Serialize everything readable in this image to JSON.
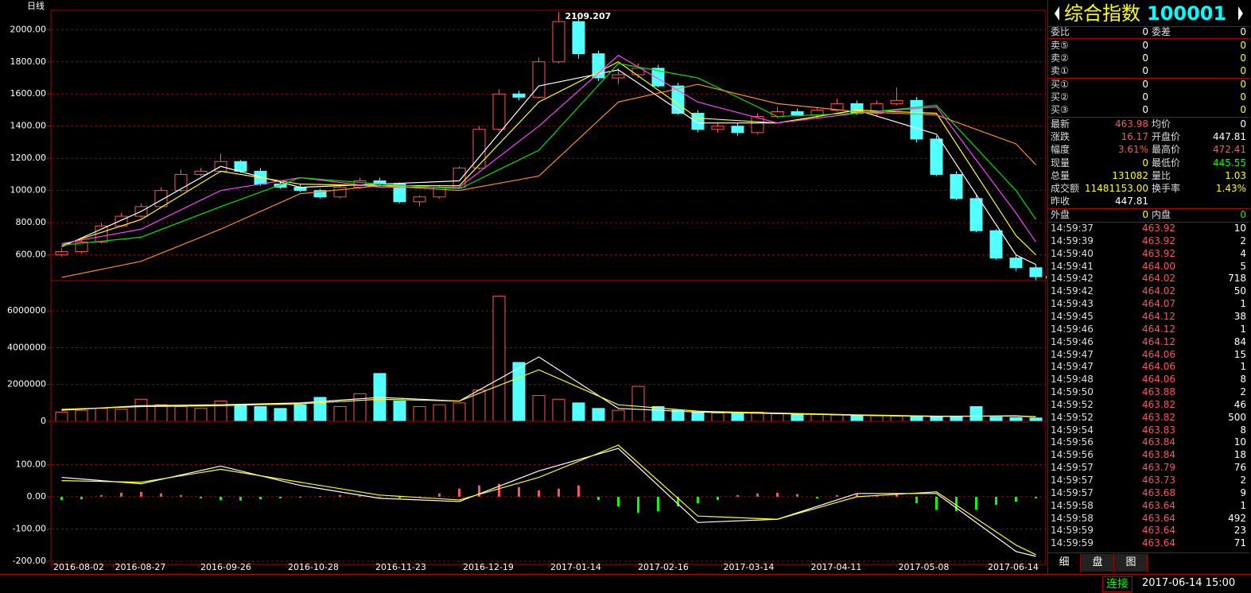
{
  "chart_data": [
    {
      "type": "candlestick",
      "title": "日线",
      "up_color": "#ff5454",
      "down_color": "#54ffff",
      "grid": true,
      "ylim": [
        440,
        2120
      ],
      "yticks": [
        {
          "value": 600,
          "label": "600.00"
        },
        {
          "value": 800,
          "label": "800.00"
        },
        {
          "value": 1000,
          "label": "1000.00"
        },
        {
          "value": 1200,
          "label": "1200.00"
        },
        {
          "value": 1400,
          "label": "1400.00"
        },
        {
          "value": 1600,
          "label": "1600.00"
        },
        {
          "value": 1800,
          "label": "1800.00"
        },
        {
          "value": 2000,
          "label": "2000.00"
        }
      ],
      "xlim": [
        -0.5,
        49.5
      ],
      "candles": {
        "open": [
          600,
          620,
          680,
          780,
          840,
          900,
          1000,
          1100,
          1120,
          1180,
          1120,
          1040,
          1020,
          1000,
          960,
          1020,
          1060,
          1040,
          930,
          960,
          1020,
          1140,
          1380,
          1600,
          1580,
          1800,
          2050,
          1850,
          1700,
          1720,
          1760,
          1650,
          1480,
          1380,
          1400,
          1360,
          1460,
          1490,
          1470,
          1500,
          1540,
          1480,
          1540,
          1560,
          1320,
          1100,
          950,
          750,
          580,
          520
        ],
        "high": [
          640,
          700,
          800,
          860,
          920,
          1020,
          1130,
          1140,
          1230,
          1190,
          1140,
          1060,
          1040,
          1010,
          1030,
          1080,
          1080,
          1050,
          970,
          1030,
          1150,
          1400,
          1630,
          1620,
          1830,
          2109.207,
          2070,
          1870,
          1760,
          1790,
          1780,
          1670,
          1500,
          1420,
          1420,
          1480,
          1520,
          1510,
          1520,
          1570,
          1560,
          1560,
          1640,
          1580,
          1340,
          1120,
          970,
          760,
          600,
          540
        ],
        "low": [
          590,
          610,
          670,
          770,
          830,
          890,
          990,
          1090,
          1110,
          1110,
          1030,
          1010,
          990,
          950,
          950,
          1010,
          1030,
          920,
          900,
          950,
          1010,
          1130,
          1370,
          1560,
          1570,
          1790,
          1820,
          1680,
          1660,
          1700,
          1640,
          1470,
          1360,
          1360,
          1340,
          1350,
          1450,
          1460,
          1450,
          1490,
          1470,
          1460,
          1530,
          1300,
          1090,
          940,
          740,
          570,
          500,
          442.1505
        ],
        "close": [
          620,
          680,
          780,
          840,
          900,
          1000,
          1100,
          1120,
          1180,
          1120,
          1040,
          1020,
          1000,
          960,
          1020,
          1060,
          1040,
          930,
          960,
          1020,
          1140,
          1380,
          1600,
          1580,
          1800,
          2050,
          1850,
          1700,
          1720,
          1760,
          1650,
          1480,
          1380,
          1400,
          1360,
          1460,
          1490,
          1470,
          1500,
          1540,
          1480,
          1540,
          1560,
          1320,
          1100,
          950,
          750,
          580,
          520,
          464
        ]
      },
      "series": [
        {
          "color": "#ffffff",
          "x": [
            0,
            4,
            8,
            12,
            16,
            20,
            24,
            28,
            32,
            36,
            40,
            44,
            48,
            49
          ],
          "values": [
            650,
            870,
            1150,
            1020,
            1040,
            1060,
            1650,
            1750,
            1420,
            1420,
            1500,
            1350,
            600,
            540
          ]
        },
        {
          "color": "#ffff00",
          "x": [
            0,
            4,
            8,
            12,
            16,
            20,
            24,
            28,
            32,
            36,
            40,
            44,
            48,
            49
          ],
          "values": [
            660,
            820,
            1120,
            1040,
            1030,
            1030,
            1550,
            1800,
            1450,
            1420,
            1500,
            1480,
            720,
            600
          ]
        },
        {
          "color": "#ff40ff",
          "x": [
            0,
            4,
            8,
            12,
            16,
            20,
            24,
            28,
            32,
            36,
            40,
            44,
            48,
            49
          ],
          "values": [
            670,
            760,
            1000,
            1080,
            1020,
            1020,
            1400,
            1840,
            1550,
            1420,
            1480,
            1520,
            860,
            680
          ]
        },
        {
          "color": "#00e000",
          "x": [
            0,
            4,
            8,
            12,
            16,
            20,
            24,
            28,
            32,
            36,
            40,
            44,
            48,
            49
          ],
          "values": [
            660,
            710,
            900,
            1080,
            1040,
            1010,
            1250,
            1790,
            1700,
            1460,
            1480,
            1530,
            1000,
            820
          ]
        },
        {
          "color": "#ff8c1a",
          "x": [
            0,
            4,
            8,
            12,
            16,
            20,
            24,
            28,
            32,
            36,
            40,
            44,
            48,
            49
          ],
          "values": [
            460,
            560,
            760,
            980,
            1030,
            1000,
            1090,
            1550,
            1660,
            1540,
            1490,
            1470,
            1290,
            1160
          ]
        }
      ]
    },
    {
      "type": "bar",
      "grid": true,
      "ylim": [
        0,
        7650000
      ],
      "yticks": [
        0,
        2000000,
        4000000,
        6000000
      ],
      "xlim": [
        -0.5,
        49.5
      ],
      "values": [
        500000,
        600000,
        700000,
        650000,
        1200000,
        900000,
        800000,
        700000,
        1100000,
        900000,
        800000,
        700000,
        900000,
        1300000,
        800000,
        1500000,
        2600000,
        1100000,
        800000,
        900000,
        1000000,
        1700000,
        6800000,
        3200000,
        1400000,
        1200000,
        1000000,
        700000,
        600000,
        1900000,
        800000,
        600000,
        500000,
        450000,
        480000,
        500000,
        420000,
        400000,
        380000,
        350000,
        330000,
        300000,
        280000,
        260000,
        250000,
        240000,
        800000,
        230000,
        200000,
        180000
      ],
      "series": [
        {
          "color": "#ffffff",
          "x": [
            0,
            4,
            8,
            12,
            16,
            20,
            24,
            28,
            32,
            36,
            40,
            44,
            48,
            49
          ],
          "values": [
            600000,
            850000,
            900000,
            1000000,
            1300000,
            1100000,
            3500000,
            700000,
            500000,
            420000,
            330000,
            260000,
            300000,
            250000
          ]
        },
        {
          "color": "#ffff00",
          "x": [
            0,
            4,
            8,
            12,
            16,
            20,
            24,
            28,
            32,
            36,
            40,
            44,
            48,
            49
          ],
          "values": [
            650000,
            800000,
            850000,
            950000,
            1200000,
            1100000,
            2800000,
            900000,
            550000,
            450000,
            350000,
            280000,
            280000,
            240000
          ]
        }
      ]
    },
    {
      "type": "macd",
      "grid": true,
      "up_color": "#ff5454",
      "down_color": "#00ff00",
      "ylim": [
        -210,
        234
      ],
      "yticks": [
        {
          "value": -200,
          "label": "-200.00"
        },
        {
          "value": -100,
          "label": "-100.00"
        },
        {
          "value": 0,
          "label": "0.00"
        },
        {
          "value": 100,
          "label": "100.00"
        }
      ],
      "xlim": [
        -0.5,
        49.5
      ],
      "xticks": [
        {
          "value": -0.5,
          "label": "2016-08-02"
        },
        {
          "value": 2.6,
          "label": "2016-08-27"
        },
        {
          "value": 6.9,
          "label": "2016-09-26"
        },
        {
          "value": 11.3,
          "label": "2016-10-28"
        },
        {
          "value": 15.7,
          "label": "2016-11-23"
        },
        {
          "value": 20.1,
          "label": "2016-12-19"
        },
        {
          "value": 24.5,
          "label": "2017-01-14"
        },
        {
          "value": 28.9,
          "label": "2017-02-16"
        },
        {
          "value": 33.2,
          "label": "2017-03-14"
        },
        {
          "value": 37.6,
          "label": "2017-04-11"
        },
        {
          "value": 42,
          "label": "2017-05-08"
        },
        {
          "value": 46.5,
          "label": "2017-06-14"
        }
      ],
      "values": [
        -10,
        -8,
        5,
        12,
        15,
        10,
        5,
        -5,
        -10,
        -12,
        -8,
        -5,
        -3,
        2,
        5,
        3,
        -2,
        -5,
        -3,
        10,
        25,
        35,
        40,
        30,
        20,
        25,
        35,
        -10,
        -30,
        -50,
        -45,
        -30,
        -20,
        -10,
        5,
        10,
        12,
        8,
        -5,
        5,
        8,
        3,
        10,
        -20,
        -40,
        -45,
        -40,
        -25,
        -15,
        -5
      ],
      "series": [
        {
          "color": "#ffffff",
          "x": [
            0,
            4,
            8,
            12,
            16,
            20,
            24,
            28,
            32,
            36,
            40,
            44,
            48,
            49
          ],
          "values": [
            60,
            40,
            95,
            35,
            -5,
            -15,
            80,
            150,
            -80,
            -70,
            10,
            10,
            -170,
            -185
          ]
        },
        {
          "color": "#ffff00",
          "x": [
            0,
            4,
            8,
            12,
            16,
            20,
            24,
            28,
            32,
            36,
            40,
            44,
            48,
            49
          ],
          "values": [
            50,
            45,
            85,
            45,
            5,
            -10,
            60,
            160,
            -60,
            -70,
            0,
            15,
            -150,
            -180
          ]
        }
      ]
    }
  ],
  "quote": {
    "title": "综合指数",
    "code": "100001",
    "ratio": [
      [
        "委比",
        "0",
        "委差",
        "0"
      ]
    ],
    "sell": [
      [
        "卖⑤",
        "0",
        "0"
      ],
      [
        "卖②",
        "0",
        "0"
      ],
      [
        "卖①",
        "0",
        "0"
      ]
    ],
    "buy": [
      [
        "买①",
        "0",
        "0"
      ],
      [
        "买②",
        "0",
        "0"
      ],
      [
        "买③",
        "0",
        "0"
      ]
    ],
    "stats": [
      [
        "最新",
        "463.98",
        "均价",
        "0"
      ],
      [
        "涨跌",
        "16.17",
        "开盘价",
        "447.81"
      ],
      [
        "幅度",
        "3.61%",
        "最高价",
        "472.41"
      ],
      [
        "现量",
        "0",
        "最低价",
        "445.55"
      ],
      [
        "总量",
        "131082",
        "量比",
        "1.03"
      ],
      [
        "成交额",
        "11481153.00",
        "换手率",
        "1.43%"
      ],
      [
        "昨收",
        "447.81"
      ]
    ],
    "flow": [
      [
        "外盘",
        "0",
        "内盘",
        "0"
      ]
    ]
  },
  "trades": [
    [
      "14:59:37",
      "463.92",
      "10"
    ],
    [
      "14:59:39",
      "463.92",
      "2"
    ],
    [
      "14:59:40",
      "463.92",
      "4"
    ],
    [
      "14:59:41",
      "464.00",
      "5"
    ],
    [
      "14:59:42",
      "464.02",
      "718"
    ],
    [
      "14:59:42",
      "464.02",
      "50"
    ],
    [
      "14:59:43",
      "464.07",
      "1"
    ],
    [
      "14:59:45",
      "464.12",
      "38"
    ],
    [
      "14:59:46",
      "464.12",
      "1"
    ],
    [
      "14:59:46",
      "464.12",
      "84"
    ],
    [
      "14:59:47",
      "464.06",
      "15"
    ],
    [
      "14:59:47",
      "464.06",
      "1"
    ],
    [
      "14:59:48",
      "464.06",
      "8"
    ],
    [
      "14:59:50",
      "463.88",
      "2"
    ],
    [
      "14:59:52",
      "463.82",
      "46"
    ],
    [
      "14:59:52",
      "463.82",
      "500"
    ],
    [
      "14:59:54",
      "463.83",
      "8"
    ],
    [
      "14:59:56",
      "463.84",
      "10"
    ],
    [
      "14:59:56",
      "463.84",
      "18"
    ],
    [
      "14:59:57",
      "463.79",
      "76"
    ],
    [
      "14:59:57",
      "463.73",
      "2"
    ],
    [
      "14:59:57",
      "463.68",
      "9"
    ],
    [
      "14:59:58",
      "463.64",
      "1"
    ],
    [
      "14:59:58",
      "463.64",
      "492"
    ],
    [
      "14:59:59",
      "463.64",
      "23"
    ],
    [
      "14:59:59",
      "463.64",
      "71"
    ]
  ],
  "tabs": [
    "细",
    "盘",
    "图"
  ],
  "status": {
    "connection": "连接",
    "time": "2017-06-14 15:00"
  }
}
